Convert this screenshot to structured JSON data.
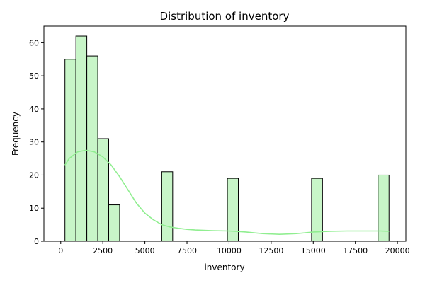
{
  "chart_data": {
    "type": "bar",
    "title": "Distribution of inventory",
    "xlabel": "inventory",
    "ylabel": "Frequency",
    "xlim": [
      -1000,
      20500
    ],
    "ylim": [
      0,
      65
    ],
    "xticks": [
      0,
      2500,
      5000,
      7500,
      10000,
      12500,
      15000,
      17500,
      20000
    ],
    "yticks": [
      0,
      10,
      20,
      30,
      40,
      50,
      60
    ],
    "bar_fill": "#c8f5c8",
    "bar_edge": "#000000",
    "kde_color": "#90ee90",
    "grid": false,
    "bins": [
      {
        "x0": 250,
        "x1": 900,
        "count": 55
      },
      {
        "x0": 900,
        "x1": 1550,
        "count": 62
      },
      {
        "x0": 1550,
        "x1": 2200,
        "count": 56
      },
      {
        "x0": 2200,
        "x1": 2850,
        "count": 31
      },
      {
        "x0": 2850,
        "x1": 3500,
        "count": 11
      },
      {
        "x0": 6000,
        "x1": 6650,
        "count": 21
      },
      {
        "x0": 9900,
        "x1": 10550,
        "count": 19
      },
      {
        "x0": 14900,
        "x1": 15550,
        "count": 19
      },
      {
        "x0": 18850,
        "x1": 19500,
        "count": 20
      }
    ],
    "kde": {
      "x": [
        250,
        500,
        1000,
        1500,
        2000,
        2500,
        3000,
        3500,
        4000,
        4500,
        5000,
        5500,
        6000,
        6500,
        7000,
        7500,
        8000,
        9000,
        10000,
        11000,
        12000,
        13000,
        14000,
        15000,
        16000,
        17000,
        18000,
        19000,
        19500
      ],
      "y": [
        23,
        25,
        27,
        27.5,
        27,
        25.5,
        23,
        19.5,
        15.5,
        11.5,
        8.5,
        6.5,
        5,
        4.3,
        3.9,
        3.6,
        3.4,
        3.2,
        3.1,
        2.8,
        2.3,
        2.1,
        2.3,
        2.8,
        3.0,
        3.1,
        3.1,
        3.1,
        3.0
      ]
    }
  }
}
